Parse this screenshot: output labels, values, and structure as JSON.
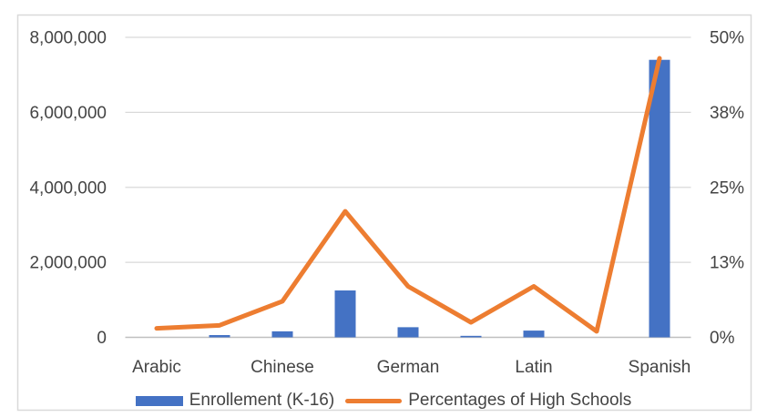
{
  "chart_data": {
    "type": "combo",
    "title": "",
    "categories": [
      "Arabic",
      "",
      "Chinese",
      "",
      "German",
      "",
      "Latin",
      "",
      "Spanish"
    ],
    "x_tick_labels_visible": [
      "Arabic",
      "Chinese",
      "German",
      "Latin",
      "Spanish"
    ],
    "series": [
      {
        "name": "Enrollement (K-16)",
        "type": "bar",
        "axis": "left",
        "color": "#4472C4",
        "values": [
          0,
          60000,
          160000,
          1250000,
          270000,
          40000,
          180000,
          0,
          7400000
        ]
      },
      {
        "name": "Percentages of High Schools",
        "type": "line",
        "axis": "right",
        "color": "#ED7D31",
        "values": [
          1.5,
          2,
          6,
          21,
          8.5,
          2.5,
          8.5,
          1,
          46.5
        ]
      }
    ],
    "left_axis": {
      "min": 0,
      "max": 8000000,
      "tick_labels": [
        "0",
        "2,000,000",
        "4,000,000",
        "6,000,000",
        "8,000,000"
      ]
    },
    "right_axis": {
      "min": 0,
      "max": 50,
      "tick_labels": [
        "0%",
        "13%",
        "25%",
        "38%",
        "50%"
      ]
    },
    "gridlines": true,
    "legend_position": "bottom"
  },
  "colors": {
    "bar": "#4472C4",
    "line": "#ED7D31",
    "gridline": "#D9D9D9",
    "axis_line": "#C0C0C0",
    "text": "#444444",
    "border": "#D9D9D9",
    "background": "#FFFFFF"
  }
}
